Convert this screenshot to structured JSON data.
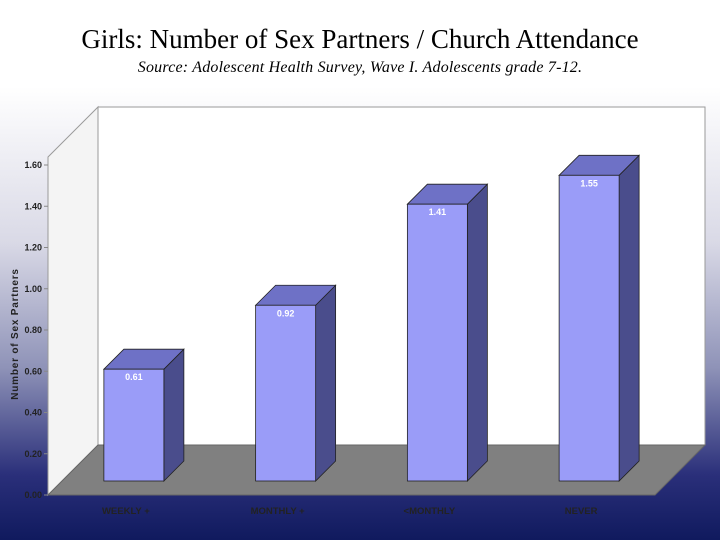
{
  "title": "Girls: Number of Sex Partners / Church Attendance",
  "subtitle": "Source: Adolescent Health Survey, Wave I. Adolescents grade 7-12.",
  "chart_data": {
    "type": "bar",
    "categories": [
      "WEEKLY +",
      "MONTHLY +",
      "<MONTHLY",
      "NEVER"
    ],
    "values": [
      0.61,
      0.92,
      1.41,
      1.55
    ],
    "data_labels": [
      "0.61",
      "0.92",
      "1.41",
      "1.55"
    ],
    "ylabel": "Number of Sex Partners",
    "xlabel": "",
    "ylim": [
      0,
      1.6
    ],
    "yticks": [
      "0.00",
      "0.20",
      "0.40",
      "0.60",
      "0.80",
      "1.00",
      "1.20",
      "1.40",
      "1.60"
    ],
    "style": "3d-column",
    "colors": {
      "bar_front": "#9a9cf8",
      "bar_side": "#4a4d8c",
      "bar_top": "#6e71c6",
      "floor": "#808080",
      "wall": "#ffffff"
    }
  }
}
